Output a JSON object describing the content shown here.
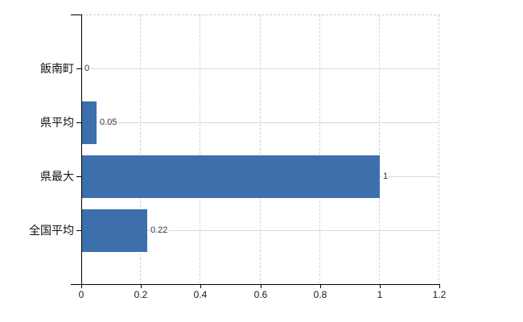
{
  "chart_data": {
    "type": "bar",
    "orientation": "horizontal",
    "title": "",
    "xlabel": "",
    "ylabel": "",
    "categories": [
      "飯南町",
      "県平均",
      "県最大",
      "全国平均"
    ],
    "values": [
      0,
      0.05,
      1,
      0.22
    ],
    "value_labels": [
      "0",
      "0.05",
      "1",
      "0.22"
    ],
    "xlim": [
      0,
      1.2
    ],
    "xticks": [
      0,
      0.2,
      0.4,
      0.6,
      0.8,
      1,
      1.2
    ],
    "xtick_labels": [
      "0",
      "0.2",
      "0.4",
      "0.6",
      "0.8",
      "1",
      "1.2"
    ],
    "grid": true,
    "legend": false,
    "colors": {
      "bar": "#3d6fad",
      "vertical_gridline": "#d4d4d4",
      "horizontal_gridline": "#d9d9d9",
      "axis": "#000000",
      "background": "#ffffff",
      "tick_label": "#1a1a1a",
      "value_label": "#333333"
    }
  }
}
